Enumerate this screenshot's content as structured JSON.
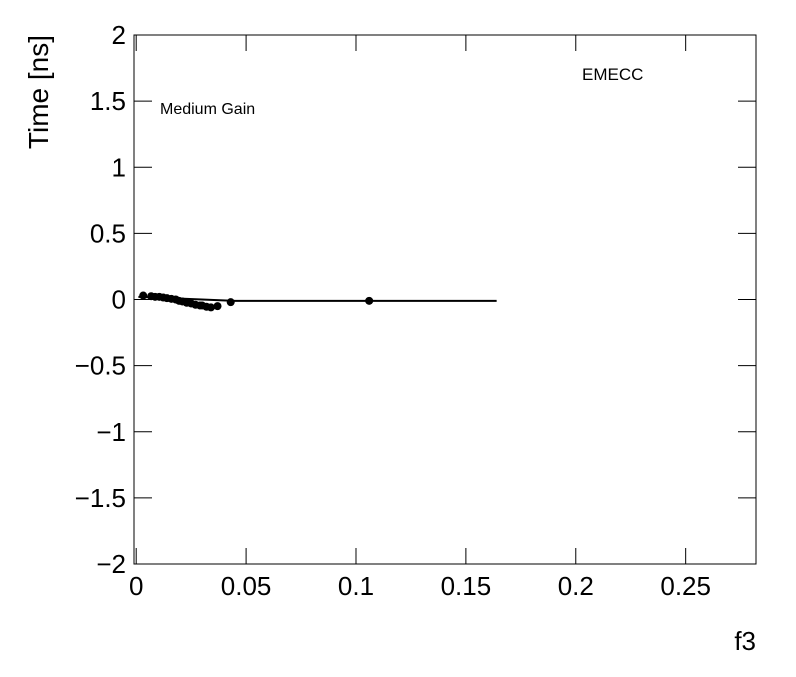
{
  "chart_data": {
    "type": "scatter",
    "annotations": [
      "Medium Gain",
      "EMECC"
    ],
    "x_label": "f3",
    "y_label": "Time [ns]",
    "series": [
      {
        "name": "points",
        "color": "#000000",
        "x": [
          0.0032,
          0.0068,
          0.0086,
          0.0105,
          0.0123,
          0.014,
          0.016,
          0.018,
          0.0195,
          0.021,
          0.023,
          0.025,
          0.027,
          0.029,
          0.03,
          0.032,
          0.034,
          0.037,
          0.043,
          0.106
        ],
        "values": [
          0.03,
          0.025,
          0.02,
          0.02,
          0.015,
          0.01,
          0.005,
          0,
          -0.01,
          -0.015,
          -0.025,
          -0.03,
          -0.04,
          -0.045,
          -0.045,
          -0.055,
          -0.06,
          -0.05,
          -0.02,
          -0.01
        ]
      },
      {
        "name": "fit",
        "color": "#000000",
        "x": [
          0.001,
          0.045,
          0.164
        ],
        "values": [
          0.02,
          -0.01,
          -0.01
        ]
      }
    ],
    "xlim": [
      -0.001,
      0.282
    ],
    "ylim": [
      -2,
      2
    ],
    "xticks": [
      0,
      0.05,
      0.1,
      0.15,
      0.2,
      0.25
    ],
    "yticks": [
      {
        "value": -2,
        "label": "−2"
      },
      {
        "value": -1.5,
        "label": "−1.5"
      },
      {
        "value": -1,
        "label": "−1"
      },
      {
        "value": -0.5,
        "label": "−0.5"
      },
      0,
      0.5,
      1,
      1.5,
      2
    ]
  }
}
